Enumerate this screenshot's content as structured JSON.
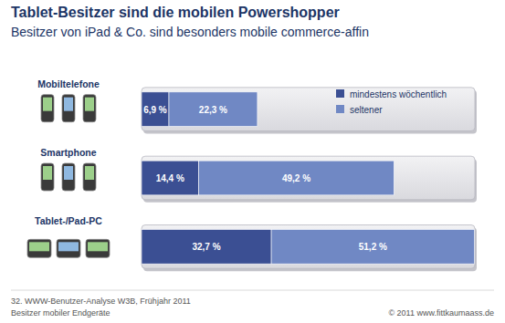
{
  "chart_data": {
    "type": "bar",
    "title": "Tablet-Besitzer sind die mobilen Powershopper",
    "subtitle": "Besitzer von iPad & Co. sind besonders mobile commerce-affin",
    "orientation": "horizontal",
    "stacked": true,
    "data_labels": true,
    "tick_labels": false,
    "legend": "top-right",
    "categories": [
      "Mobiltelefone",
      "Smartphone",
      "Tablet-/Pad-PC"
    ],
    "xlim": [
      0,
      84
    ],
    "series": [
      {
        "name": "mindestens wöchentlich",
        "color": "#3b4f93",
        "values": [
          6.9,
          14.4,
          32.7
        ],
        "value_labels": [
          "6,9 %",
          "14,4 %",
          "32,7 %"
        ]
      },
      {
        "name": "seltener",
        "color": "#7088c4",
        "values": [
          22.3,
          49.2,
          51.2
        ],
        "value_labels": [
          "22,3 %",
          "49,2 %",
          "51,2 %"
        ]
      }
    ],
    "annotations": [
      "32. WWW-Benutzer-Analyse W3B, Frühjahr 2011",
      "Besitzer mobiler Endgeräte",
      "© 2011 www.fittkaumaass.de"
    ]
  }
}
